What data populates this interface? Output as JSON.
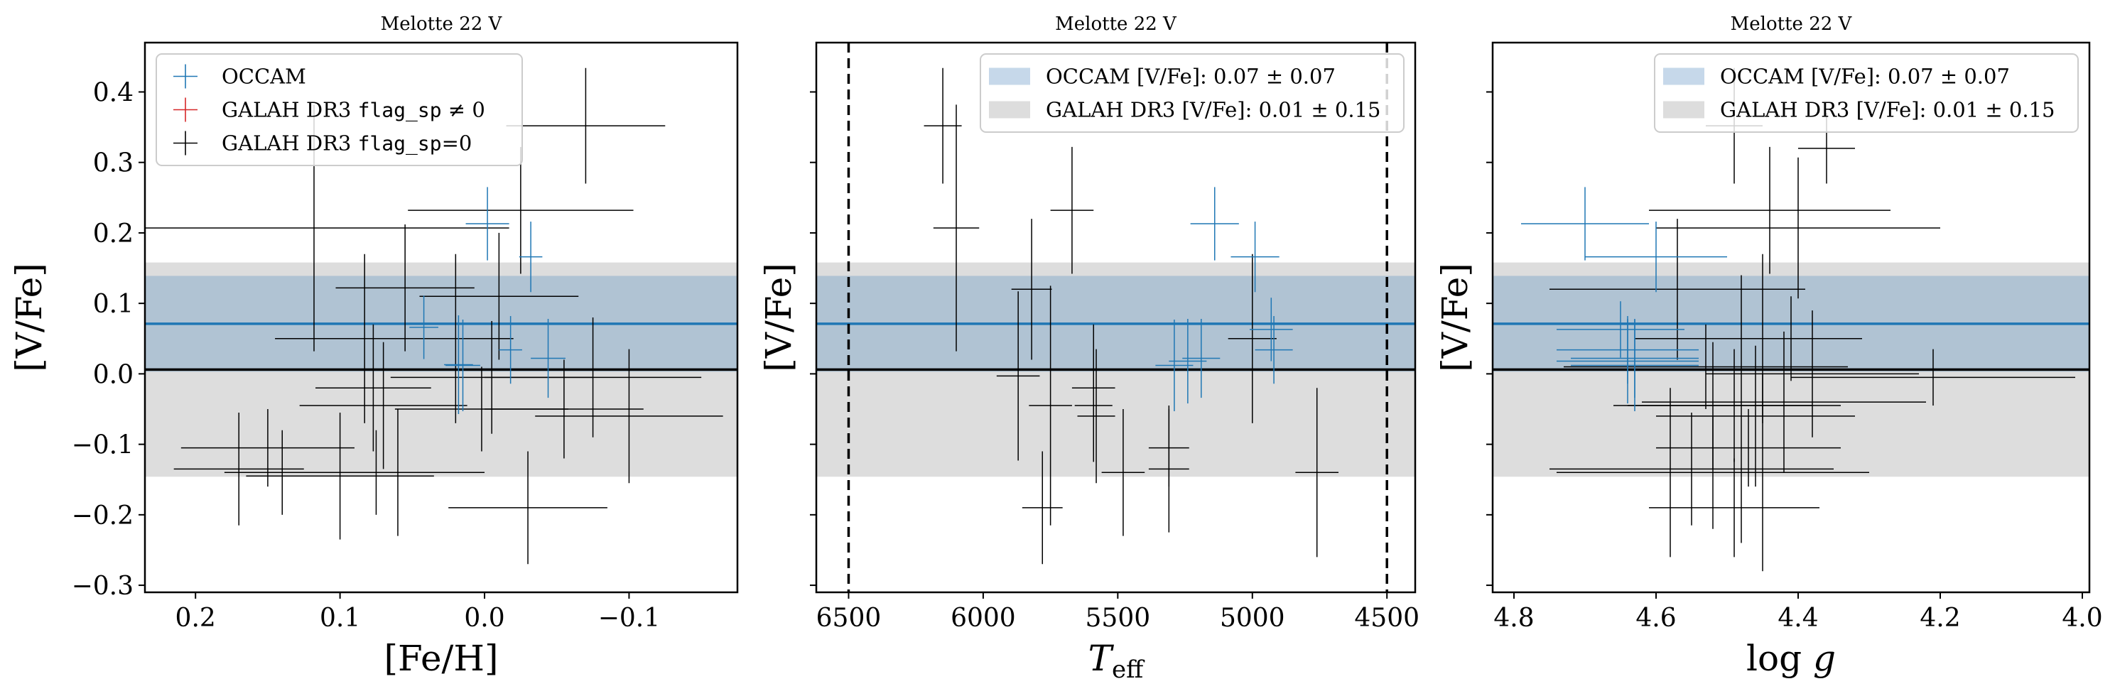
{
  "chart_data": [
    {
      "type": "scatter",
      "title": "Melotte 22 V",
      "xlabel": "[Fe/H]",
      "ylabel": "[V/Fe]",
      "xlim": [
        0.235,
        -0.175
      ],
      "ylim": [
        -0.31,
        0.47
      ],
      "xticks": [
        0.2,
        0.1,
        0.0,
        -0.1
      ],
      "xtick_labels": [
        "0.2",
        "0.1",
        "0.0",
        "−0.1"
      ],
      "yticks": [
        -0.3,
        -0.2,
        -0.1,
        0.0,
        0.1,
        0.2,
        0.3,
        0.4
      ],
      "ytick_labels": [
        "−0.3",
        "−0.2",
        "−0.1",
        "0.0",
        "0.1",
        "0.2",
        "0.3",
        "0.4"
      ],
      "show_ytick_labels": true,
      "legend_position": "top-left",
      "legend": [
        {
          "kind": "marker",
          "color": "#1f77b4",
          "label": "OCCAM"
        },
        {
          "kind": "marker",
          "color": "#d62728",
          "label_prefix": "GALAH DR3 ",
          "label_code": "flag_sp",
          "label_suffix": " ≠ 0"
        },
        {
          "kind": "marker",
          "color": "#000000",
          "label_prefix": "GALAH DR3 ",
          "label_code": "flag_sp",
          "label_suffix": "=0"
        }
      ],
      "bands": [
        {
          "name": "GALAH DR3 [V/Fe]",
          "center": 0.006,
          "halfwidth": 0.152,
          "color": "#dddddd"
        },
        {
          "name": "OCCAM [V/Fe]",
          "center": 0.071,
          "halfwidth": 0.068,
          "color": "#b0c3d3"
        }
      ],
      "hlines": [
        {
          "y": 0.071,
          "color": "#1f77b4"
        },
        {
          "y": 0.006,
          "color": "#000000"
        }
      ],
      "vlines": [],
      "series": [
        {
          "name": "OCCAM",
          "color": "#1f77b4",
          "points": [
            [
              -0.002,
              0.213,
              0.015,
              0.052
            ],
            [
              -0.032,
              0.166,
              0.008,
              0.05
            ],
            [
              0.042,
              0.066,
              0.01,
              0.045
            ],
            [
              0.018,
              0.013,
              0.01,
              0.07
            ],
            [
              0.015,
              0.012,
              0.012,
              0.065
            ],
            [
              -0.018,
              0.034,
              0.008,
              0.048
            ],
            [
              -0.044,
              0.022,
              0.012,
              0.056
            ]
          ]
        },
        {
          "name": "GALAH DR3 flag_sp=0",
          "color": "#000000",
          "points": [
            [
              0.118,
              0.207,
              0.135,
              0.175
            ],
            [
              -0.07,
              0.352,
              0.055,
              0.082
            ],
            [
              -0.025,
              0.232,
              0.078,
              0.09
            ],
            [
              0.083,
              0.05,
              0.062,
              0.12
            ],
            [
              0.055,
              0.122,
              0.048,
              0.09
            ],
            [
              -0.01,
              0.11,
              0.055,
              0.09
            ],
            [
              0.02,
              0.05,
              0.04,
              0.12
            ],
            [
              0.077,
              -0.02,
              0.04,
              0.09
            ],
            [
              0.07,
              -0.045,
              0.058,
              0.09
            ],
            [
              -0.005,
              -0.005,
              0.07,
              0.08
            ],
            [
              -0.075,
              -0.005,
              0.075,
              0.085
            ],
            [
              0.15,
              -0.105,
              0.06,
              0.055
            ],
            [
              0.17,
              -0.135,
              0.045,
              0.08
            ],
            [
              0.14,
              -0.14,
              0.04,
              0.06
            ],
            [
              0.1,
              -0.145,
              0.065,
              0.09
            ],
            [
              0.075,
              -0.14,
              0.045,
              0.06
            ],
            [
              0.06,
              -0.14,
              0.06,
              0.09
            ],
            [
              0.002,
              -0.05,
              0.06,
              0.06
            ],
            [
              -0.055,
              -0.05,
              0.055,
              0.07
            ],
            [
              -0.1,
              -0.06,
              0.065,
              0.095
            ],
            [
              -0.03,
              -0.19,
              0.055,
              0.08
            ]
          ]
        }
      ]
    },
    {
      "type": "scatter",
      "title": "Melotte 22 V",
      "xlabel": "T_eff",
      "ylabel": "[V/Fe]",
      "xlim": [
        6620,
        4395
      ],
      "ylim": [
        -0.31,
        0.47
      ],
      "xticks": [
        6500,
        6000,
        5500,
        5000,
        4500
      ],
      "xtick_labels": [
        "6500",
        "6000",
        "5500",
        "5000",
        "4500"
      ],
      "yticks": [
        -0.3,
        -0.2,
        -0.1,
        0.0,
        0.1,
        0.2,
        0.3,
        0.4
      ],
      "show_ytick_labels": false,
      "legend_position": "top-right",
      "legend": [
        {
          "kind": "patch",
          "color": "#c6d8ea",
          "label": "OCCAM [V/Fe]: 0.07 ± 0.07"
        },
        {
          "kind": "patch",
          "color": "#dddddd",
          "label": "GALAH DR3 [V/Fe]: 0.01 ± 0.15"
        }
      ],
      "bands": [
        {
          "name": "GALAH DR3 [V/Fe]",
          "center": 0.006,
          "halfwidth": 0.152,
          "color": "#dddddd"
        },
        {
          "name": "OCCAM [V/Fe]",
          "center": 0.071,
          "halfwidth": 0.068,
          "color": "#b0c3d3"
        }
      ],
      "hlines": [
        {
          "y": 0.071,
          "color": "#1f77b4"
        },
        {
          "y": 0.006,
          "color": "#000000"
        }
      ],
      "vlines": [
        {
          "x": 6500,
          "style": "dashed"
        },
        {
          "x": 4500,
          "style": "dashed"
        }
      ],
      "series": [
        {
          "name": "OCCAM",
          "color": "#1f77b4",
          "points": [
            [
              5140,
              0.213,
              90,
              0.052
            ],
            [
              4990,
              0.166,
              90,
              0.05
            ],
            [
              4930,
              0.063,
              80,
              0.045
            ],
            [
              4920,
              0.034,
              70,
              0.048
            ],
            [
              5290,
              0.012,
              70,
              0.065
            ],
            [
              5240,
              0.018,
              70,
              0.06
            ],
            [
              5190,
              0.022,
              70,
              0.056
            ]
          ]
        },
        {
          "name": "GALAH DR3 flag_sp=0",
          "color": "#000000",
          "points": [
            [
              6150,
              0.352,
              70,
              0.082
            ],
            [
              6100,
              0.207,
              85,
              0.175
            ],
            [
              5670,
              0.232,
              80,
              0.09
            ],
            [
              5820,
              0.12,
              75,
              0.1
            ],
            [
              5870,
              -0.003,
              80,
              0.12
            ],
            [
              5750,
              -0.045,
              80,
              0.17
            ],
            [
              5780,
              -0.19,
              75,
              0.08
            ],
            [
              5590,
              -0.02,
              80,
              0.09
            ],
            [
              5590,
              -0.045,
              70,
              0.08
            ],
            [
              5580,
              -0.06,
              70,
              0.095
            ],
            [
              5480,
              -0.14,
              80,
              0.09
            ],
            [
              5310,
              -0.105,
              75,
              0.055
            ],
            [
              5310,
              -0.135,
              75,
              0.09
            ],
            [
              5000,
              0.05,
              90,
              0.12
            ],
            [
              4760,
              -0.14,
              80,
              0.12
            ]
          ]
        }
      ]
    },
    {
      "type": "scatter",
      "title": "Melotte 22 V",
      "xlabel": "log g",
      "ylabel": "[V/Fe]",
      "xlim": [
        4.83,
        3.99
      ],
      "ylim": [
        -0.31,
        0.47
      ],
      "xticks": [
        4.8,
        4.6,
        4.4,
        4.2,
        4.0
      ],
      "xtick_labels": [
        "4.8",
        "4.6",
        "4.4",
        "4.2",
        "4.0"
      ],
      "yticks": [
        -0.3,
        -0.2,
        -0.1,
        0.0,
        0.1,
        0.2,
        0.3,
        0.4
      ],
      "show_ytick_labels": false,
      "legend_position": "top-right",
      "legend": [
        {
          "kind": "patch",
          "color": "#c6d8ea",
          "label": "OCCAM [V/Fe]: 0.07 ± 0.07"
        },
        {
          "kind": "patch",
          "color": "#dddddd",
          "label": "GALAH DR3 [V/Fe]: 0.01 ± 0.15"
        }
      ],
      "bands": [
        {
          "name": "GALAH DR3 [V/Fe]",
          "center": 0.006,
          "halfwidth": 0.152,
          "color": "#dddddd"
        },
        {
          "name": "OCCAM [V/Fe]",
          "center": 0.071,
          "halfwidth": 0.068,
          "color": "#b0c3d3"
        }
      ],
      "hlines": [
        {
          "y": 0.071,
          "color": "#1f77b4"
        },
        {
          "y": 0.006,
          "color": "#000000"
        }
      ],
      "vlines": [],
      "series": [
        {
          "name": "OCCAM",
          "color": "#1f77b4",
          "points": [
            [
              4.7,
              0.213,
              0.09,
              0.052
            ],
            [
              4.6,
              0.166,
              0.1,
              0.05
            ],
            [
              4.65,
              0.063,
              0.09,
              0.04
            ],
            [
              4.64,
              0.034,
              0.1,
              0.048
            ],
            [
              4.63,
              0.022,
              0.09,
              0.056
            ],
            [
              4.64,
              0.018,
              0.1,
              0.06
            ],
            [
              4.63,
              0.012,
              0.09,
              0.065
            ]
          ]
        },
        {
          "name": "GALAH DR3 flag_sp=0",
          "color": "#000000",
          "points": [
            [
              4.49,
              0.352,
              0.04,
              0.082
            ],
            [
              4.36,
              0.32,
              0.04,
              0.05
            ],
            [
              4.44,
              0.232,
              0.17,
              0.09
            ],
            [
              4.4,
              0.207,
              0.2,
              0.1
            ],
            [
              4.57,
              0.12,
              0.18,
              0.1
            ],
            [
              4.45,
              0.05,
              0.12,
              0.12
            ],
            [
              4.48,
              0.05,
              0.15,
              0.09
            ],
            [
              4.41,
              0.05,
              0.1,
              0.06
            ],
            [
              4.53,
              0.01,
              0.2,
              0.06
            ],
            [
              4.38,
              0.0,
              0.15,
              0.09
            ],
            [
              4.21,
              -0.005,
              0.2,
              0.04
            ],
            [
              4.52,
              -0.045,
              0.14,
              0.09
            ],
            [
              4.49,
              -0.045,
              0.15,
              0.08
            ],
            [
              4.46,
              -0.06,
              0.14,
              0.1
            ],
            [
              4.42,
              -0.04,
              0.2,
              0.1
            ],
            [
              4.47,
              -0.105,
              0.13,
              0.055
            ],
            [
              4.55,
              -0.135,
              0.2,
              0.08
            ],
            [
              4.58,
              -0.14,
              0.16,
              0.12
            ],
            [
              4.48,
              -0.14,
              0.18,
              0.1
            ],
            [
              4.45,
              -0.14,
              0.14,
              0.14
            ],
            [
              4.52,
              -0.14,
              0.12,
              0.08
            ],
            [
              4.49,
              -0.19,
              0.12,
              0.07
            ]
          ]
        }
      ]
    }
  ]
}
